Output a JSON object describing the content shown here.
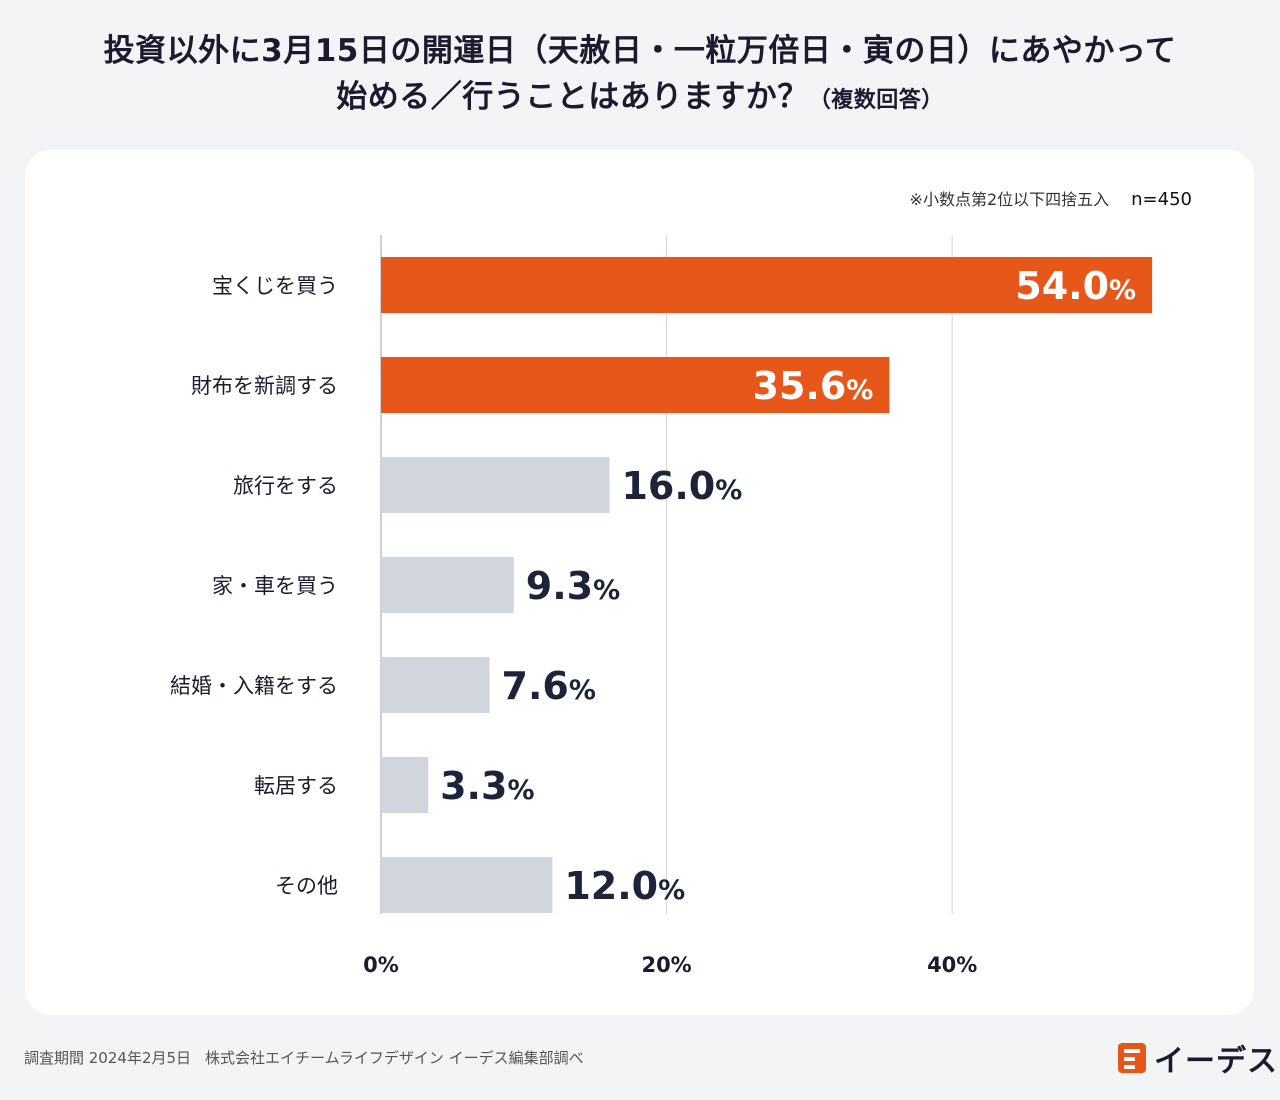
{
  "chart_data": {
    "type": "bar",
    "orientation": "horizontal",
    "title_line1": "投資以外に3月15日の開運日（天赦日・一粒万倍日・寅の日）にあやかって",
    "title_line2": "始める／行うことはありますか？",
    "title_suffix": "（複数回答）",
    "note": "※小数点第2位以下四捨五入",
    "sample": "n=450",
    "categories": [
      "宝くじを買う",
      "財布を新調する",
      "旅行をする",
      "家・車を買う",
      "結婚・入籍をする",
      "転居する",
      "その他"
    ],
    "values": [
      54.0,
      35.6,
      16.0,
      9.3,
      7.6,
      3.3,
      12.0
    ],
    "value_labels": [
      "54.0",
      "35.6",
      "16.0",
      "9.3",
      "7.6",
      "3.3",
      "12.0"
    ],
    "unit": "%",
    "highlight": [
      true,
      true,
      false,
      false,
      false,
      false,
      false
    ],
    "xlim": [
      0,
      60
    ],
    "xticks": [
      0,
      20,
      40
    ],
    "xtick_labels": [
      "0%",
      "20%",
      "40%"
    ],
    "grid": true,
    "colors": {
      "highlight": "#e8571a",
      "normal": "#d1d5dd",
      "label_dark": "#1b2438",
      "label_light": "#ffffff"
    }
  },
  "footer": {
    "survey": "調査期間 2024年2月5日",
    "company": "株式会社エイチームライフデザイン イーデス編集部調べ"
  },
  "logo": {
    "text": "イーデス",
    "icon": "edes-logo-icon"
  }
}
